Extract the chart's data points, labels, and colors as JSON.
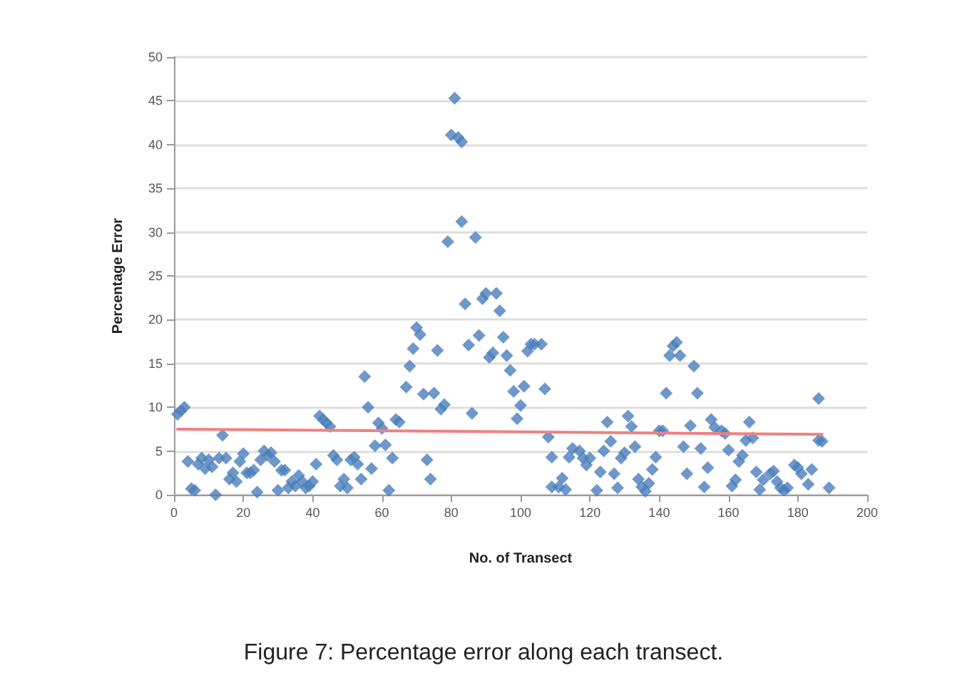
{
  "chart_data": {
    "type": "scatter",
    "title": "Figure 7: Percentage error along each transect.",
    "xlabel": "No. of Transect",
    "ylabel": "Percentage Error",
    "xlim": [
      0,
      200
    ],
    "xticks": [
      0,
      20,
      40,
      60,
      80,
      100,
      120,
      140,
      160,
      180,
      200
    ],
    "ylim": [
      0,
      50
    ],
    "yticks": [
      0,
      5,
      10,
      15,
      20,
      25,
      30,
      35,
      40,
      45,
      50
    ],
    "grid": "y",
    "marker": "diamond",
    "series": [
      {
        "color": "#4a7ebb",
        "x": [
          1,
          2,
          3,
          4,
          5,
          6,
          7,
          8,
          9,
          10,
          11,
          12,
          13,
          14,
          15,
          16,
          17,
          18,
          19,
          20,
          21,
          22,
          23,
          24,
          25,
          26,
          27,
          28,
          29,
          30,
          31,
          32,
          33,
          34,
          35,
          36,
          37,
          38,
          39,
          40,
          41,
          42,
          43,
          44,
          45,
          46,
          47,
          48,
          49,
          50,
          51,
          52,
          53,
          54,
          55,
          56,
          57,
          58,
          59,
          60,
          61,
          62,
          63,
          64,
          65,
          67,
          68,
          69,
          70,
          71,
          72,
          73,
          74,
          75,
          76,
          77,
          78,
          79,
          80,
          81,
          82,
          83,
          83,
          84,
          85,
          86,
          87,
          88,
          89,
          90,
          91,
          92,
          93,
          94,
          95,
          96,
          97,
          98,
          99,
          100,
          101,
          102,
          103,
          104,
          106,
          107,
          108,
          109,
          109,
          111,
          112,
          113,
          114,
          115,
          117,
          118,
          119,
          120,
          122,
          123,
          124,
          125,
          126,
          127,
          128,
          129,
          130,
          131,
          132,
          133,
          134,
          135,
          136,
          137,
          138,
          139,
          140,
          141,
          142,
          143,
          144,
          145,
          146,
          147,
          148,
          149,
          150,
          151,
          152,
          153,
          154,
          155,
          156,
          158,
          159,
          160,
          161,
          162,
          163,
          164,
          165,
          166,
          167,
          168,
          169,
          170,
          172,
          173,
          174,
          175,
          176,
          177,
          179,
          180,
          181,
          183,
          184,
          186,
          186,
          187,
          189
        ],
        "values": [
          9.2,
          9.6,
          10,
          3.8,
          0.7,
          0.5,
          3.5,
          4.2,
          3,
          4,
          3.2,
          0,
          4.2,
          6.8,
          4.2,
          1.8,
          2.5,
          1.5,
          3.8,
          4.7,
          2.5,
          2.5,
          2.8,
          0.3,
          4,
          5,
          4.5,
          4.8,
          3.8,
          0.5,
          2.8,
          2.8,
          0.8,
          1.5,
          1,
          2.2,
          1.5,
          0.8,
          1,
          1.5,
          3.5,
          9,
          8.6,
          8.2,
          7.8,
          4.5,
          4,
          1,
          1.8,
          0.8,
          4,
          4.3,
          3.5,
          1.8,
          13.5,
          10,
          3,
          5.6,
          8.2,
          7.6,
          5.7,
          0.5,
          4.2,
          8.6,
          8.3,
          12.3,
          14.7,
          16.7,
          19.1,
          18.3,
          11.5,
          4,
          1.8,
          11.6,
          16.5,
          9.8,
          10.3,
          28.9,
          41.1,
          45.3,
          40.8,
          40.3,
          31.2,
          21.8,
          17.1,
          9.3,
          29.4,
          18.2,
          22.4,
          23,
          15.7,
          16.2,
          23,
          21,
          18,
          15.9,
          14.2,
          11.8,
          8.7,
          10.2,
          12.4,
          16.4,
          17.2,
          17.2,
          17.2,
          12.1,
          6.6,
          4.3,
          0.9,
          0.9,
          1.9,
          0.6,
          4.3,
          5.3,
          5,
          4.2,
          3.4,
          4.2,
          0.5,
          2.6,
          5,
          8.3,
          6.1,
          2.4,
          0.8,
          4.2,
          4.8,
          9,
          7.8,
          5.5,
          1.8,
          0.9,
          0.4,
          1.3,
          2.9,
          4.3,
          7.3,
          7.3,
          11.6,
          15.9,
          17,
          17.4,
          15.9,
          5.5,
          2.4,
          7.9,
          14.7,
          11.6,
          5.3,
          0.9,
          3.1,
          8.6,
          7.7,
          7.3,
          7,
          5.1,
          1,
          1.7,
          3.8,
          4.5,
          6.2,
          8.3,
          6.5,
          2.6,
          0.6,
          1.7,
          2.4,
          2.7,
          1.5,
          0.8,
          0.5,
          0.8,
          3.4,
          3.1,
          2.4,
          1.2,
          2.9,
          6.2,
          11,
          6.1,
          0.8
        ]
      },
      {
        "type": "line",
        "marker": "none",
        "color": "#f08080",
        "x": [
          1,
          187
        ],
        "values": [
          7.5,
          6.9
        ]
      }
    ]
  }
}
